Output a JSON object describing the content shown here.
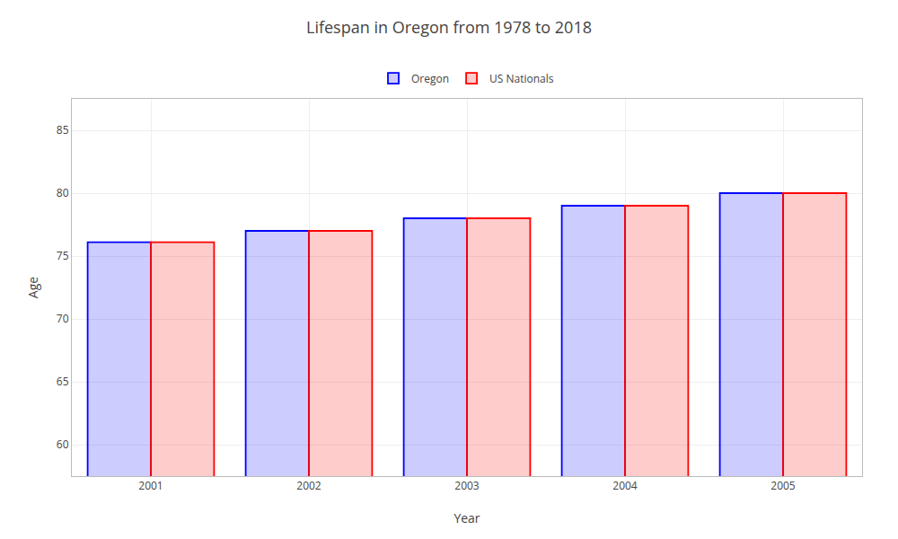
{
  "chart_data": {
    "type": "bar",
    "title": "Lifespan in Oregon from 1978 to 2018",
    "xlabel": "Year",
    "ylabel": "Age",
    "categories": [
      "2001",
      "2002",
      "2003",
      "2004",
      "2005"
    ],
    "series": [
      {
        "name": "Oregon",
        "color": "#0000ff",
        "values": [
          76.1,
          77.0,
          78.0,
          79.0,
          80.0
        ]
      },
      {
        "name": "US Nationals",
        "color": "#ff0000",
        "values": [
          76.1,
          77.0,
          78.0,
          79.0,
          80.0
        ]
      }
    ],
    "ylim": [
      57.5,
      87.5
    ],
    "yticks": [
      60,
      65,
      70,
      75,
      80,
      85
    ],
    "grid": true,
    "legend": "top"
  }
}
